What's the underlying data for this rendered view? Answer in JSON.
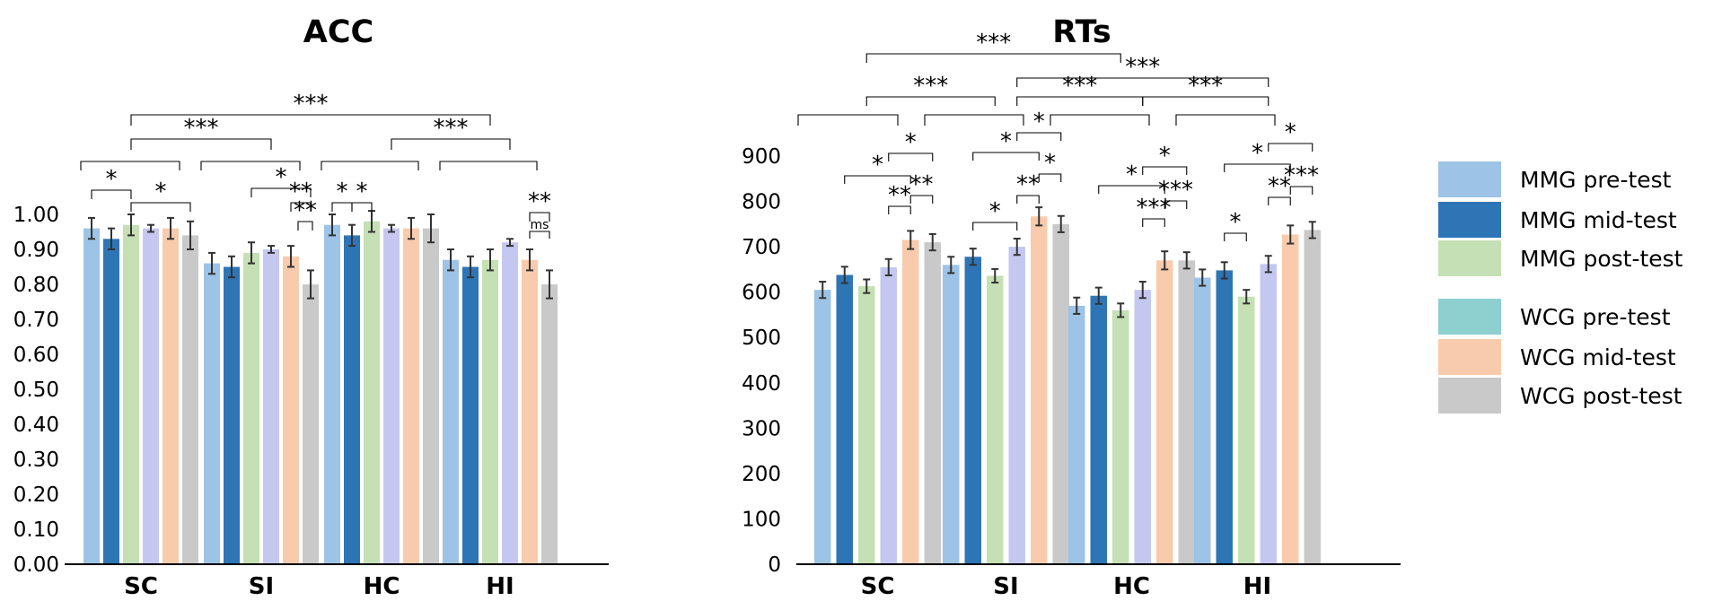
{
  "chart_data": [
    {
      "type": "bar",
      "title": "ACC",
      "categories": [
        "SC",
        "SI",
        "HC",
        "HI"
      ],
      "yticks": [
        "0.00",
        "0.10",
        "0.20",
        "0.30",
        "0.40",
        "0.50",
        "0.60",
        "0.70",
        "0.80",
        "0.90",
        "1.00"
      ],
      "ylim": [
        0,
        1.0
      ],
      "series": [
        {
          "name": "MMG pre-test",
          "color": "#9dc3e6",
          "values": [
            0.96,
            0.86,
            0.97,
            0.87
          ],
          "errors": [
            0.03,
            0.03,
            0.03,
            0.03
          ]
        },
        {
          "name": "MMG mid-test",
          "color": "#2e75b6",
          "values": [
            0.93,
            0.85,
            0.94,
            0.85
          ],
          "errors": [
            0.03,
            0.03,
            0.03,
            0.03
          ]
        },
        {
          "name": "MMG post-test",
          "color": "#c5e0b4",
          "values": [
            0.97,
            0.89,
            0.98,
            0.87
          ],
          "errors": [
            0.03,
            0.03,
            0.03,
            0.03
          ]
        },
        {
          "name": "WCG pre-test",
          "color": "#c4c8f0",
          "values": [
            0.96,
            0.9,
            0.96,
            0.92
          ],
          "errors": [
            0.01,
            0.01,
            0.01,
            0.01
          ]
        },
        {
          "name": "WCG mid-test",
          "color": "#f8cbad",
          "values": [
            0.96,
            0.88,
            0.96,
            0.87
          ],
          "errors": [
            0.03,
            0.03,
            0.03,
            0.03
          ]
        },
        {
          "name": "WCG post-test",
          "color": "#c9c9c9",
          "values": [
            0.94,
            0.8,
            0.96,
            0.8
          ],
          "errors": [
            0.04,
            0.04,
            0.04,
            0.04
          ]
        }
      ],
      "annotations": [
        {
          "label": "*",
          "from": [
            0,
            0
          ],
          "to": [
            0,
            2
          ]
        },
        {
          "label": "*",
          "from": [
            0,
            2
          ],
          "to": [
            0,
            5
          ]
        },
        {
          "label": "*",
          "from": [
            1,
            3
          ],
          "to": [
            1,
            5
          ]
        },
        {
          "label": "**",
          "from": [
            1,
            4
          ],
          "to": [
            1,
            5
          ]
        },
        {
          "label": "**",
          "from": [
            1,
            5
          ],
          "to": [
            1,
            5
          ]
        },
        {
          "label": "*",
          "from": [
            2,
            0
          ],
          "to": [
            2,
            1
          ]
        },
        {
          "label": "*",
          "from": [
            2,
            1
          ],
          "to": [
            2,
            2
          ]
        },
        {
          "label": "**",
          "from": [
            3,
            4
          ],
          "to": [
            3,
            5
          ]
        },
        {
          "label": "ms",
          "from": [
            3,
            4
          ],
          "to": [
            3,
            5
          ]
        },
        {
          "label": "***",
          "from": [
            0,
            2
          ],
          "to": [
            3,
            2
          ]
        },
        {
          "label": "***",
          "from": [
            0,
            2
          ],
          "to": [
            1,
            3
          ]
        },
        {
          "label": "***",
          "from": [
            2,
            3
          ],
          "to": [
            3,
            3
          ]
        }
      ]
    },
    {
      "type": "bar",
      "title": "RTs",
      "categories": [
        "SC",
        "SI",
        "HC",
        "HI"
      ],
      "yticks": [
        "0",
        "100",
        "200",
        "300",
        "400",
        "500",
        "600",
        "700",
        "800",
        "900"
      ],
      "ylim": [
        0,
        900
      ],
      "series": [
        {
          "name": "MMG pre-test",
          "color": "#9dc3e6",
          "values": [
            605,
            660,
            570,
            632
          ],
          "errors": [
            18,
            18,
            18,
            18
          ]
        },
        {
          "name": "MMG mid-test",
          "color": "#2e75b6",
          "values": [
            638,
            678,
            592,
            648
          ],
          "errors": [
            18,
            18,
            18,
            18
          ]
        },
        {
          "name": "MMG post-test",
          "color": "#c5e0b4",
          "values": [
            613,
            636,
            560,
            590
          ],
          "errors": [
            15,
            15,
            15,
            15
          ]
        },
        {
          "name": "WCG pre-test",
          "color": "#c4c8f0",
          "values": [
            655,
            700,
            605,
            662
          ],
          "errors": [
            18,
            18,
            18,
            18
          ]
        },
        {
          "name": "WCG mid-test",
          "color": "#f8cbad",
          "values": [
            715,
            767,
            670,
            727
          ],
          "errors": [
            20,
            20,
            20,
            20
          ]
        },
        {
          "name": "WCG post-test",
          "color": "#c9c9c9",
          "values": [
            710,
            750,
            670,
            737
          ],
          "errors": [
            18,
            18,
            18,
            18
          ]
        }
      ],
      "annotations": [
        {
          "label": "**",
          "from": [
            0,
            3
          ],
          "to": [
            0,
            4
          ]
        },
        {
          "label": "**",
          "from": [
            0,
            4
          ],
          "to": [
            0,
            5
          ]
        },
        {
          "label": "*",
          "from": [
            0,
            1
          ],
          "to": [
            0,
            4
          ]
        },
        {
          "label": "*",
          "from": [
            0,
            3
          ],
          "to": [
            0,
            5
          ]
        },
        {
          "label": "*",
          "from": [
            1,
            1
          ],
          "to": [
            1,
            3
          ]
        },
        {
          "label": "**",
          "from": [
            1,
            3
          ],
          "to": [
            1,
            4
          ]
        },
        {
          "label": "*",
          "from": [
            1,
            4
          ],
          "to": [
            1,
            5
          ]
        },
        {
          "label": "*",
          "from": [
            1,
            1
          ],
          "to": [
            1,
            4
          ]
        },
        {
          "label": "*",
          "from": [
            1,
            3
          ],
          "to": [
            1,
            5
          ]
        },
        {
          "label": "***",
          "from": [
            2,
            3
          ],
          "to": [
            2,
            4
          ]
        },
        {
          "label": "***",
          "from": [
            2,
            4
          ],
          "to": [
            2,
            5
          ]
        },
        {
          "label": "*",
          "from": [
            2,
            3
          ],
          "to": [
            2,
            5
          ]
        },
        {
          "label": "*",
          "from": [
            2,
            1
          ],
          "to": [
            2,
            4
          ]
        },
        {
          "label": "*",
          "from": [
            3,
            1
          ],
          "to": [
            3,
            2
          ]
        },
        {
          "label": "**",
          "from": [
            3,
            3
          ],
          "to": [
            3,
            4
          ]
        },
        {
          "label": "***",
          "from": [
            3,
            4
          ],
          "to": [
            3,
            5
          ]
        },
        {
          "label": "*",
          "from": [
            3,
            1
          ],
          "to": [
            3,
            4
          ]
        },
        {
          "label": "*",
          "from": [
            3,
            3
          ],
          "to": [
            3,
            5
          ]
        },
        {
          "label": "***",
          "from": [
            0,
            2
          ],
          "to": [
            1,
            2
          ]
        },
        {
          "label": "***",
          "from": [
            1,
            3
          ],
          "to": [
            2,
            3
          ]
        },
        {
          "label": "***",
          "from": [
            2,
            3
          ],
          "to": [
            3,
            3
          ]
        },
        {
          "label": "***",
          "from": [
            1,
            3
          ],
          "to": [
            3,
            3
          ]
        },
        {
          "label": "***",
          "from": [
            0,
            2
          ],
          "to": [
            2,
            2
          ]
        }
      ]
    }
  ],
  "legend": {
    "items": [
      {
        "label": "MMG pre-test",
        "color": "#9dc3e6"
      },
      {
        "label": "MMG mid-test",
        "color": "#2e75b6"
      },
      {
        "label": "MMG post-test",
        "color": "#c5e0b4"
      },
      {
        "label": "WCG pre-test",
        "color": "#8ecfd0"
      },
      {
        "label": "WCG mid-test",
        "color": "#f8cbad"
      },
      {
        "label": "WCG post-test",
        "color": "#c9c9c9"
      }
    ]
  }
}
